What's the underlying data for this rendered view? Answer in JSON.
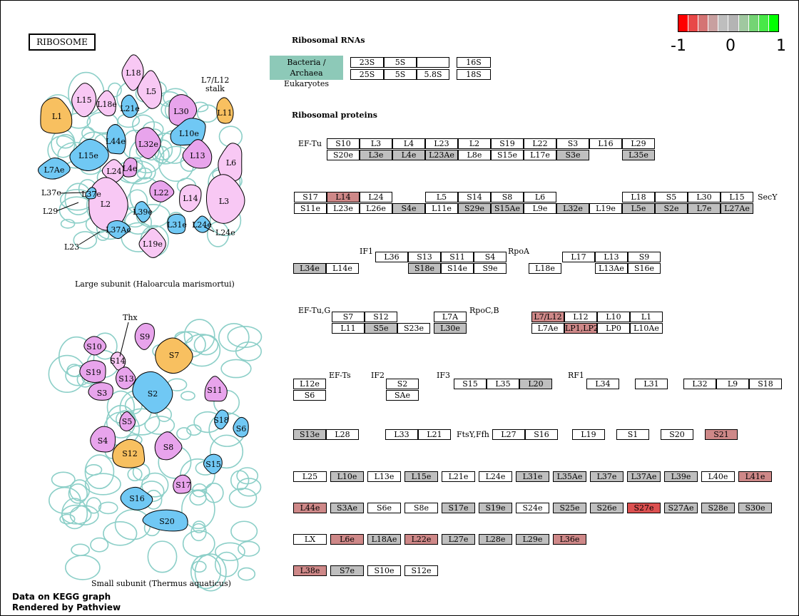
{
  "title": "RIBOSOME",
  "colors": {
    "gray": "#bfbfbf",
    "red_light": "#ce8888",
    "red_strong": "#dc5050",
    "white": "#ffffff",
    "teal": "#8dc9b8",
    "pink": "#f8c8f4",
    "violet": "#e8a4ec",
    "blue": "#70c8f4",
    "orange": "#f8c060",
    "loop": "#8ccfc8"
  },
  "legend": {
    "ticks": [
      "-1",
      "0",
      "1"
    ],
    "swatches": [
      "#ff0000",
      "#e84848",
      "#d47474",
      "#c8a0a0",
      "#bebebe",
      "#b4b4b4",
      "#a0c8a0",
      "#74d474",
      "#48e848",
      "#00ff00"
    ]
  },
  "rna": {
    "heading": "Ribosomal RNAs",
    "org_label": [
      "Bacteria / Archaea",
      "Eukaryotes"
    ],
    "boxes": [
      {
        "id": "23S",
        "label": "23S"
      },
      {
        "id": "5S_b",
        "label": "5S"
      },
      {
        "id": "empty_b",
        "label": ""
      },
      {
        "id": "16S",
        "label": "16S"
      },
      {
        "id": "25S",
        "label": "25S"
      },
      {
        "id": "5S_e",
        "label": "5S"
      },
      {
        "id": "58S",
        "label": "5.8S"
      },
      {
        "id": "18S",
        "label": "18S"
      }
    ]
  },
  "proteins_heading": "Ribosomal proteins",
  "factor_labels": [
    "EF-Tu",
    "SecY",
    "IF1",
    "RpoA",
    "EF-Tu,G",
    "RpoC,B",
    "EF-Ts",
    "IF2",
    "IF3",
    "RF1",
    "FtsY,Ffh"
  ],
  "proteins": [
    {
      "label": "S10",
      "c": "w"
    },
    {
      "label": "L3",
      "c": "w"
    },
    {
      "label": "L4",
      "c": "w"
    },
    {
      "label": "L23",
      "c": "w"
    },
    {
      "label": "L2",
      "c": "w"
    },
    {
      "label": "S19",
      "c": "w"
    },
    {
      "label": "L22",
      "c": "w"
    },
    {
      "label": "S3",
      "c": "w"
    },
    {
      "label": "L16",
      "c": "w"
    },
    {
      "label": "L29",
      "c": "w"
    },
    {
      "label": "S20e",
      "c": "w"
    },
    {
      "label": "L3e",
      "c": "g"
    },
    {
      "label": "L4e",
      "c": "g"
    },
    {
      "label": "L23Ae",
      "c": "g"
    },
    {
      "label": "L8e",
      "c": "w"
    },
    {
      "label": "S15e",
      "c": "w"
    },
    {
      "label": "L17e",
      "c": "w"
    },
    {
      "label": "S3e",
      "c": "g"
    },
    {
      "label": "L35e",
      "c": "g"
    },
    {
      "label": "S17",
      "c": "w"
    },
    {
      "label": "L14",
      "c": "r"
    },
    {
      "label": "L24",
      "c": "w"
    },
    {
      "label": "L5",
      "c": "w"
    },
    {
      "label": "S14",
      "c": "w"
    },
    {
      "label": "S8",
      "c": "w"
    },
    {
      "label": "L6",
      "c": "w"
    },
    {
      "label": "L18",
      "c": "w"
    },
    {
      "label": "S5",
      "c": "w"
    },
    {
      "label": "L30",
      "c": "w"
    },
    {
      "label": "L15",
      "c": "w"
    },
    {
      "label": "S11e",
      "c": "w"
    },
    {
      "label": "L23e",
      "c": "w"
    },
    {
      "label": "L26e",
      "c": "w"
    },
    {
      "label": "S4e",
      "c": "g"
    },
    {
      "label": "L11e",
      "c": "w"
    },
    {
      "label": "S29e",
      "c": "g"
    },
    {
      "label": "S15Ae",
      "c": "g"
    },
    {
      "label": "L9e",
      "c": "w"
    },
    {
      "label": "L32e",
      "c": "g"
    },
    {
      "label": "L19e",
      "c": "w"
    },
    {
      "label": "L5e",
      "c": "g"
    },
    {
      "label": "S2e",
      "c": "g"
    },
    {
      "label": "L7e",
      "c": "g"
    },
    {
      "label": "L27Ae",
      "c": "g"
    },
    {
      "label": "L36",
      "c": "w"
    },
    {
      "label": "S13",
      "c": "w"
    },
    {
      "label": "S11",
      "c": "w"
    },
    {
      "label": "S4",
      "c": "w"
    },
    {
      "label": "L17",
      "c": "w"
    },
    {
      "label": "L13",
      "c": "w"
    },
    {
      "label": "S9",
      "c": "w"
    },
    {
      "label": "L34e",
      "c": "g"
    },
    {
      "label": "L14e",
      "c": "w"
    },
    {
      "label": "S18e",
      "c": "g"
    },
    {
      "label": "S14e",
      "c": "w"
    },
    {
      "label": "S9e",
      "c": "w"
    },
    {
      "label": "L18e",
      "c": "w"
    },
    {
      "label": "L13Ae",
      "c": "w"
    },
    {
      "label": "S16e",
      "c": "w"
    },
    {
      "label": "S7",
      "c": "w"
    },
    {
      "label": "S12",
      "c": "w"
    },
    {
      "label": "L7A",
      "c": "w"
    },
    {
      "label": "L7/L12",
      "c": "r"
    },
    {
      "label": "L12",
      "c": "w"
    },
    {
      "label": "L10",
      "c": "w"
    },
    {
      "label": "L1",
      "c": "w"
    },
    {
      "label": "L11",
      "c": "w"
    },
    {
      "label": "S5e",
      "c": "g"
    },
    {
      "label": "S23e",
      "c": "w"
    },
    {
      "label": "L30e",
      "c": "g"
    },
    {
      "label": "L7Ae",
      "c": "w"
    },
    {
      "label": "LP1,LP2",
      "c": "r"
    },
    {
      "label": "LP0",
      "c": "w"
    },
    {
      "label": "L10Ae",
      "c": "w"
    },
    {
      "label": "L12e",
      "c": "w"
    },
    {
      "label": "S2",
      "c": "w"
    },
    {
      "label": "S15",
      "c": "w"
    },
    {
      "label": "L35",
      "c": "w"
    },
    {
      "label": "L20",
      "c": "g"
    },
    {
      "label": "L34",
      "c": "w"
    },
    {
      "label": "L31",
      "c": "w"
    },
    {
      "label": "L32",
      "c": "w"
    },
    {
      "label": "L9",
      "c": "w"
    },
    {
      "label": "S18",
      "c": "w"
    },
    {
      "label": "S6",
      "c": "w"
    },
    {
      "label": "SAe",
      "c": "w"
    },
    {
      "label": "S13e",
      "c": "g"
    },
    {
      "label": "L28",
      "c": "w"
    },
    {
      "label": "L33",
      "c": "w"
    },
    {
      "label": "L21",
      "c": "w"
    },
    {
      "label": "L27",
      "c": "w"
    },
    {
      "label": "S16",
      "c": "w"
    },
    {
      "label": "L19",
      "c": "w"
    },
    {
      "label": "S1",
      "c": "w"
    },
    {
      "label": "S20",
      "c": "w"
    },
    {
      "label": "S21",
      "c": "r"
    },
    {
      "label": "L25",
      "c": "w"
    },
    {
      "label": "L10e",
      "c": "g"
    },
    {
      "label": "L13e",
      "c": "w"
    },
    {
      "label": "L15e",
      "c": "g"
    },
    {
      "label": "L21e",
      "c": "w"
    },
    {
      "label": "L24e",
      "c": "w"
    },
    {
      "label": "L31e",
      "c": "g"
    },
    {
      "label": "L35Ae",
      "c": "g"
    },
    {
      "label": "L37e",
      "c": "g"
    },
    {
      "label": "L37Ae",
      "c": "g"
    },
    {
      "label": "L39e",
      "c": "g"
    },
    {
      "label": "L40e",
      "c": "w"
    },
    {
      "label": "L41e",
      "c": "r"
    },
    {
      "label": "L44e",
      "c": "r"
    },
    {
      "label": "S3Ae",
      "c": "g"
    },
    {
      "label": "S6e",
      "c": "w"
    },
    {
      "label": "S8e",
      "c": "w"
    },
    {
      "label": "S17e",
      "c": "g"
    },
    {
      "label": "S19e",
      "c": "g"
    },
    {
      "label": "S24e",
      "c": "w"
    },
    {
      "label": "S25e",
      "c": "g"
    },
    {
      "label": "S26e",
      "c": "g"
    },
    {
      "label": "S27e",
      "c": "R"
    },
    {
      "label": "S27Ae",
      "c": "g"
    },
    {
      "label": "S28e",
      "c": "g"
    },
    {
      "label": "S30e",
      "c": "g"
    },
    {
      "label": "LX",
      "c": "w"
    },
    {
      "label": "L6e",
      "c": "r"
    },
    {
      "label": "L18Ae",
      "c": "g"
    },
    {
      "label": "L22e",
      "c": "r"
    },
    {
      "label": "L27e",
      "c": "g"
    },
    {
      "label": "L28e",
      "c": "g"
    },
    {
      "label": "L29e",
      "c": "g"
    },
    {
      "label": "L36e",
      "c": "r"
    },
    {
      "label": "L38e",
      "c": "r"
    },
    {
      "label": "S7e",
      "c": "g"
    },
    {
      "label": "S10e",
      "c": "w"
    },
    {
      "label": "S12e",
      "c": "w"
    },
    {
      "label": "S21e",
      "c": "g"
    }
  ],
  "large_subunit": {
    "caption": "Large subunit (Haloarcula marismortui)",
    "stalk_label": [
      "L7/L12",
      "stalk"
    ],
    "blobs": [
      {
        "label": "L18",
        "t": "pink"
      },
      {
        "label": "L5",
        "t": "pink"
      },
      {
        "label": "L15",
        "t": "pink"
      },
      {
        "label": "L18e",
        "t": "pink"
      },
      {
        "label": "L21e",
        "t": "blue"
      },
      {
        "label": "L30",
        "t": "violet"
      },
      {
        "label": "L11",
        "t": "orange"
      },
      {
        "label": "L1",
        "t": "orange"
      },
      {
        "label": "L44e",
        "t": "blue"
      },
      {
        "label": "L32e",
        "t": "violet"
      },
      {
        "label": "L10e",
        "t": "blue"
      },
      {
        "label": "L15e",
        "t": "blue"
      },
      {
        "label": "L13",
        "t": "violet"
      },
      {
        "label": "L6",
        "t": "pink"
      },
      {
        "label": "L7Ae",
        "t": "blue"
      },
      {
        "label": "L24",
        "t": "pink"
      },
      {
        "label": "L4e",
        "t": "violet"
      },
      {
        "label": "L2",
        "t": "pink"
      },
      {
        "label": "L22",
        "t": "violet"
      },
      {
        "label": "L14",
        "t": "pink"
      },
      {
        "label": "L3",
        "t": "pink"
      },
      {
        "label": "L39e",
        "t": "blue"
      },
      {
        "label": "L31e",
        "t": "blue"
      },
      {
        "label": "L37Ae",
        "t": "blue"
      },
      {
        "label": "L19e",
        "t": "pink"
      },
      {
        "label": "L37e",
        "t": "blue"
      },
      {
        "label": "L24e",
        "t": "blue"
      }
    ],
    "pointer_labels": [
      "L37e",
      "L29",
      "L23",
      "L24e"
    ]
  },
  "small_subunit": {
    "caption": "Small subunit (Thermus aquaticus)",
    "blobs": [
      {
        "label": "S9",
        "t": "violet"
      },
      {
        "label": "S10",
        "t": "violet"
      },
      {
        "label": "S7",
        "t": "orange"
      },
      {
        "label": "S19",
        "t": "violet"
      },
      {
        "label": "S14",
        "t": "pink"
      },
      {
        "label": "S13",
        "t": "violet"
      },
      {
        "label": "S3",
        "t": "violet"
      },
      {
        "label": "S2",
        "t": "blue"
      },
      {
        "label": "S11",
        "t": "violet"
      },
      {
        "label": "S18",
        "t": "blue"
      },
      {
        "label": "S6",
        "t": "blue"
      },
      {
        "label": "S5",
        "t": "violet"
      },
      {
        "label": "S4",
        "t": "violet"
      },
      {
        "label": "S12",
        "t": "orange"
      },
      {
        "label": "S8",
        "t": "violet"
      },
      {
        "label": "S15",
        "t": "blue"
      },
      {
        "label": "S17",
        "t": "violet"
      },
      {
        "label": "S16",
        "t": "blue"
      },
      {
        "label": "S20",
        "t": "blue"
      }
    ],
    "pointer_label": "Thx"
  },
  "footer": [
    "Data on KEGG graph",
    "Rendered by Pathview"
  ]
}
